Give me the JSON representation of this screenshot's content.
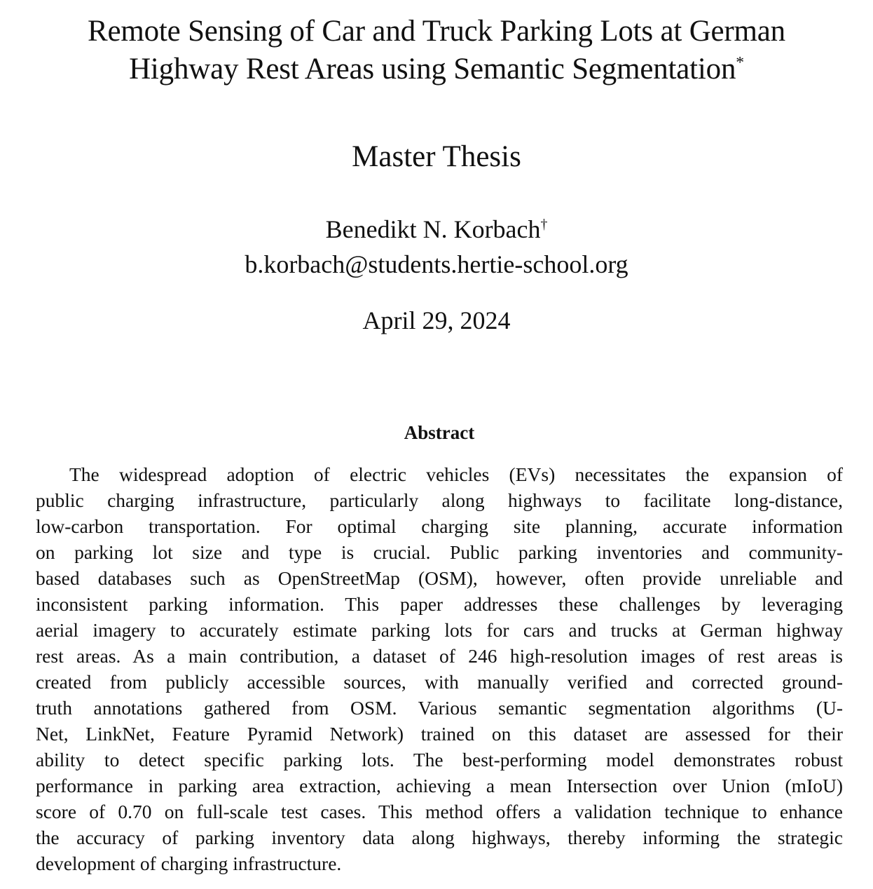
{
  "paper": {
    "title_line1": "Remote Sensing of Car and Truck Parking Lots at German",
    "title_line2": "Highway Rest Areas using Semantic Segmentation",
    "title_mark": "*",
    "subtitle": "Master Thesis",
    "author": "Benedikt N. Korbach",
    "author_mark": "†",
    "email": "b.korbach@students.hertie-school.org",
    "date": "April 29, 2024"
  },
  "abstract": {
    "heading": "Abstract",
    "lines": [
      "The widespread adoption of electric vehicles (EVs) necessitates the expansion of",
      "public charging infrastructure, particularly along highways to facilitate long-distance,",
      "low-carbon transportation. For optimal charging site planning, accurate information",
      "on parking lot size and type is crucial. Public parking inventories and community-",
      "based databases such as OpenStreetMap (OSM), however, often provide unreliable and",
      "inconsistent parking information. This paper addresses these challenges by leveraging",
      "aerial imagery to accurately estimate parking lots for cars and trucks at German highway",
      "rest areas. As a main contribution, a dataset of 246 high-resolution images of rest areas is",
      "created from publicly accessible sources, with manually verified and corrected ground-",
      "truth annotations gathered from OSM. Various semantic segmentation algorithms (U-",
      "Net, LinkNet, Feature Pyramid Network) trained on this dataset are assessed for their",
      "ability to detect specific parking lots. The best-performing model demonstrates robust",
      "performance in parking area extraction, achieving a mean Intersection over Union (mIoU)",
      "score of 0.70 on full-scale test cases. This method offers a validation technique to enhance",
      "the accuracy of parking inventory data along highways, thereby informing the strategic",
      "development of charging infrastructure."
    ]
  }
}
